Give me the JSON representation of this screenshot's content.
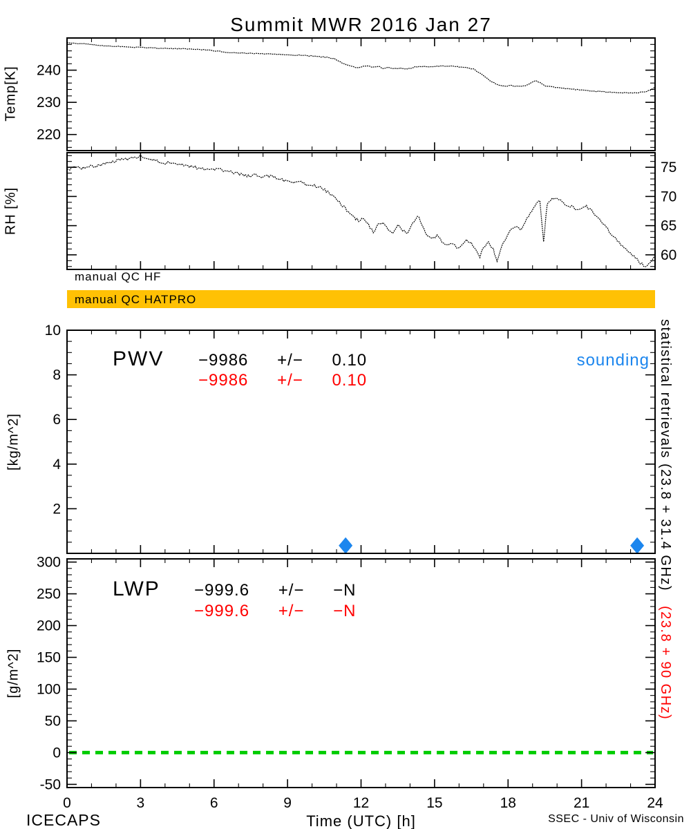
{
  "title": "Summit MWR 2016 Jan 27",
  "colors": {
    "black": "#000000",
    "red": "#ff0000",
    "blue": "#1c86ee",
    "green": "#00cc00",
    "qc_orange": "#ffc104"
  },
  "qc": {
    "hf_label": "manual QC HF",
    "hatpro_label": "manual QC HATPRO"
  },
  "pwv": {
    "label": "PWV",
    "black_line": "−9986 +/− 0.10",
    "red_line": "−9986 +/− 0.10",
    "sounding_label": "sounding"
  },
  "lwp": {
    "label": "LWP",
    "black_line": "−999.6 +/− −N",
    "red_line": "−999.6 +/− −N"
  },
  "right_margin": {
    "black_text": "statistical retrievals (23.8 + 31.4 GHz)",
    "red_text": "(23.8 + 90 GHz)"
  },
  "footer": {
    "left": "ICECAPS",
    "right": "SSEC - Univ of Wisconsin"
  },
  "x_axis": {
    "label": "Time (UTC) [h]",
    "lim": [
      0,
      24
    ],
    "ticks": [
      0,
      3,
      6,
      9,
      12,
      15,
      18,
      21,
      24
    ],
    "minor_step": 1
  },
  "chart_data": [
    {
      "type": "line",
      "id": "temp",
      "ylabel": "Temp[K]",
      "ylim": [
        215,
        250
      ],
      "yticks": [
        220,
        230,
        240
      ],
      "yminor_step": 2,
      "ytick_side": "left",
      "x": [
        0,
        0.5,
        1,
        1.5,
        2,
        2.5,
        3,
        3.5,
        4,
        4.5,
        5,
        5.5,
        6,
        6.5,
        7,
        7.5,
        8,
        8.5,
        9,
        9.5,
        10,
        10.3,
        10.6,
        10.9,
        11.1,
        11.3,
        11.6,
        11.9,
        12.2,
        12.5,
        12.7,
        12.9,
        13.1,
        13.3,
        13.6,
        13.9,
        14.2,
        14.5,
        14.8,
        15.1,
        15.4,
        15.7,
        16,
        16.3,
        16.6,
        16.9,
        17.1,
        17.3,
        17.5,
        17.7,
        17.9,
        18.1,
        18.4,
        18.7,
        18.9,
        19.1,
        19.3,
        19.5,
        19.8,
        20.1,
        20.5,
        21,
        21.5,
        22,
        22.5,
        23,
        23.3,
        23.6,
        23.8,
        24
      ],
      "y": [
        248.6,
        248.3,
        247.9,
        247.6,
        247.4,
        247.2,
        247.1,
        246.9,
        246.8,
        246.7,
        246.6,
        246.4,
        246.0,
        245.6,
        245.4,
        245.2,
        245.1,
        244.9,
        244.8,
        244.6,
        244.4,
        244.2,
        244.0,
        243.6,
        242.8,
        241.9,
        241.2,
        240.7,
        241.4,
        240.9,
        241.2,
        240.6,
        240.9,
        240.5,
        240.6,
        240.4,
        241.0,
        241.2,
        241.1,
        241.2,
        241.3,
        241.2,
        241.0,
        240.8,
        240.3,
        238.8,
        237.6,
        236.6,
        235.8,
        235.2,
        235.0,
        235.2,
        234.9,
        235.1,
        235.8,
        236.7,
        236.3,
        235.1,
        234.8,
        234.5,
        234.2,
        233.8,
        233.5,
        233.2,
        233.0,
        232.9,
        233.0,
        233.3,
        233.8,
        234.6
      ]
    },
    {
      "type": "line",
      "id": "rh",
      "ylabel": "RH [%]",
      "ylim": [
        57.5,
        77.5
      ],
      "yticks": [
        60,
        65,
        70,
        75
      ],
      "yminor_step": 1,
      "ytick_side": "right",
      "x": [
        0,
        0.3,
        0.6,
        0.9,
        1.2,
        1.5,
        1.8,
        2.1,
        2.4,
        2.7,
        3.0,
        3.2,
        3.5,
        3.8,
        4.1,
        4.4,
        4.7,
        5.0,
        5.3,
        5.6,
        5.9,
        6.2,
        6.5,
        6.8,
        7.1,
        7.4,
        7.7,
        8.0,
        8.3,
        8.6,
        8.9,
        9.2,
        9.5,
        9.8,
        10.1,
        10.4,
        10.7,
        11.0,
        11.3,
        11.6,
        11.9,
        12.1,
        12.3,
        12.5,
        12.7,
        12.9,
        13.1,
        13.3,
        13.5,
        13.7,
        13.9,
        14.1,
        14.3,
        14.5,
        14.7,
        14.9,
        15.1,
        15.3,
        15.5,
        15.7,
        15.9,
        16.1,
        16.3,
        16.5,
        16.7,
        16.85,
        17.0,
        17.2,
        17.4,
        17.55,
        17.7,
        17.9,
        18.1,
        18.3,
        18.5,
        18.7,
        18.9,
        19.1,
        19.3,
        19.45,
        19.6,
        19.8,
        20.0,
        20.2,
        20.4,
        20.6,
        20.8,
        21.0,
        21.2,
        21.4,
        21.6,
        21.8,
        22.0,
        22.2,
        22.4,
        22.6,
        22.8,
        23.0,
        23.2,
        23.4,
        23.6,
        23.8,
        24.0
      ],
      "y": [
        74.6,
        75.0,
        74.8,
        75.3,
        75.1,
        75.6,
        75.9,
        76.2,
        76.4,
        76.6,
        76.9,
        76.6,
        76.2,
        75.9,
        75.7,
        75.8,
        75.4,
        75.2,
        74.9,
        74.7,
        74.5,
        74.7,
        74.3,
        74.1,
        73.8,
        73.5,
        73.8,
        73.3,
        73.6,
        73.0,
        72.7,
        72.3,
        72.5,
        72.0,
        71.8,
        71.4,
        70.6,
        69.4,
        68.2,
        66.8,
        65.8,
        66.4,
        65.2,
        63.8,
        65.1,
        65.6,
        64.2,
        63.6,
        65.0,
        64.1,
        63.9,
        65.3,
        66.8,
        65.2,
        63.2,
        62.6,
        63.4,
        62.2,
        61.6,
        62.1,
        61.2,
        61.6,
        62.4,
        62.1,
        60.6,
        59.6,
        61.4,
        62.0,
        61.1,
        58.7,
        60.9,
        62.8,
        64.3,
        64.9,
        64.2,
        65.8,
        67.2,
        68.6,
        69.4,
        62.2,
        68.8,
        69.6,
        69.9,
        69.1,
        68.2,
        68.5,
        67.7,
        68.1,
        68.3,
        67.6,
        66.7,
        65.7,
        64.7,
        63.7,
        62.7,
        61.7,
        61.0,
        60.2,
        59.5,
        58.6,
        58.0,
        58.6,
        59.9
      ]
    },
    {
      "type": "scatter",
      "id": "pwv",
      "ylabel": "[kg/m^2]",
      "ylim": [
        0,
        10
      ],
      "yticks": [
        2,
        4,
        6,
        8,
        10
      ],
      "yminor_step": 0.5,
      "ytick_side": "left",
      "series": [
        {
          "name": "sounding",
          "marker": "diamond",
          "color": "#1c86ee",
          "x": [
            11.37,
            23.27
          ],
          "y": [
            0.35,
            0.35
          ]
        }
      ]
    },
    {
      "type": "line",
      "id": "lwp",
      "ylabel": "[g/m^2]",
      "ylim": [
        -55,
        305
      ],
      "yticks": [
        -50,
        0,
        50,
        100,
        150,
        200,
        250,
        300
      ],
      "yminor_step": 10,
      "ytick_side": "left",
      "zero_line": {
        "value": 0,
        "style": "dashed",
        "color": "#00cc00"
      },
      "x": [],
      "y": []
    }
  ]
}
